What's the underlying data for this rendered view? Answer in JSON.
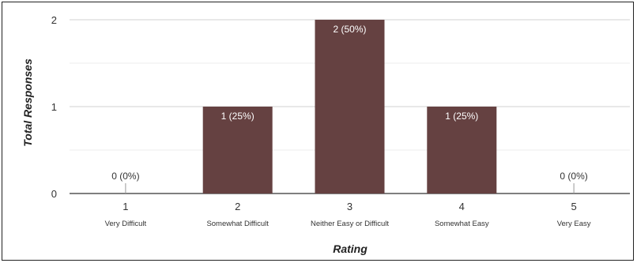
{
  "chart_data": {
    "type": "bar",
    "categories": [
      "1",
      "2",
      "3",
      "4",
      "5"
    ],
    "category_descriptions": [
      "Very Difficult",
      "Somewhat Difficult",
      "Neither Easy or Difficult",
      "Somewhat Easy",
      "Very Easy"
    ],
    "values": [
      0,
      1,
      2,
      1,
      0
    ],
    "data_labels": [
      "0 (0%)",
      "1 (25%)",
      "2 (50%)",
      "1 (25%)",
      "0 (0%)"
    ],
    "xlabel": "Rating",
    "ylabel": "Total Responses",
    "ylim": [
      0,
      2
    ],
    "yticks": [
      "0",
      "1",
      "2"
    ],
    "grid": true,
    "bar_color": "#654141"
  }
}
